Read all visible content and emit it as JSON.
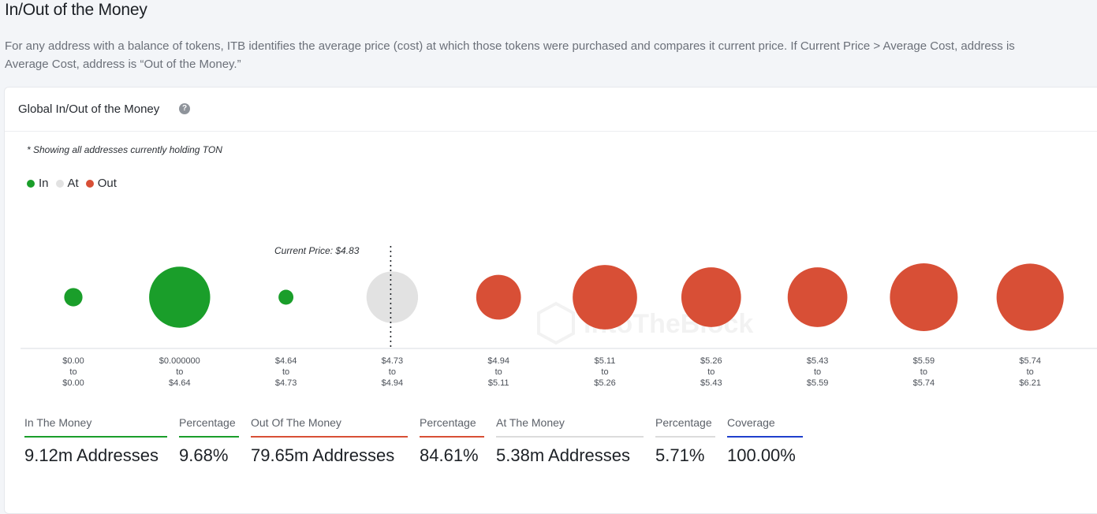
{
  "page": {
    "title": "In/Out of the Money",
    "description_line1": "For any address with a balance of tokens, ITB identifies the average price (cost) at which those tokens were purchased and compares it current price. If Current Price > Average Cost, address is",
    "description_line2": "Average Cost, address is “Out of the Money.”"
  },
  "card": {
    "title": "Global In/Out of the Money",
    "help_icon": "question-circle-icon",
    "note": "* Showing all addresses currently holding TON",
    "watermark": "IntoTheBlock"
  },
  "legend": [
    {
      "label": "In",
      "color": "#1a9e2a"
    },
    {
      "label": "At",
      "color": "#e2e2e2"
    },
    {
      "label": "Out",
      "color": "#d84f36"
    }
  ],
  "chart_data": {
    "type": "scatter",
    "current_price_label": "Current Price: $4.83",
    "current_price_bucket": 3,
    "buckets": [
      {
        "from": "$0.00",
        "to_word": "to",
        "to": "$0.00",
        "status": "In",
        "relative_size": 0.27
      },
      {
        "from": "$0.000000",
        "to_word": "to",
        "to": "$4.64",
        "status": "In",
        "relative_size": 0.9
      },
      {
        "from": "$4.64",
        "to_word": "to",
        "to": "$4.73",
        "status": "In",
        "relative_size": 0.22
      },
      {
        "from": "$4.73",
        "to_word": "to",
        "to": "$4.94",
        "status": "At",
        "relative_size": 0.76
      },
      {
        "from": "$4.94",
        "to_word": "to",
        "to": "$5.11",
        "status": "Out",
        "relative_size": 0.66
      },
      {
        "from": "$5.11",
        "to_word": "to",
        "to": "$5.26",
        "status": "Out",
        "relative_size": 0.95
      },
      {
        "from": "$5.26",
        "to_word": "to",
        "to": "$5.43",
        "status": "Out",
        "relative_size": 0.88
      },
      {
        "from": "$5.43",
        "to_word": "to",
        "to": "$5.59",
        "status": "Out",
        "relative_size": 0.88
      },
      {
        "from": "$5.59",
        "to_word": "to",
        "to": "$5.74",
        "status": "Out",
        "relative_size": 1.0
      },
      {
        "from": "$5.74",
        "to_word": "to",
        "to": "$6.21",
        "status": "Out",
        "relative_size": 0.99
      }
    ]
  },
  "stats": [
    {
      "label": "In The Money",
      "value": "9.12m Addresses",
      "color": "#1a9e2a"
    },
    {
      "label": "Percentage",
      "value": "9.68%",
      "color": "#1a9e2a"
    },
    {
      "label": "Out Of The Money",
      "value": "79.65m Addresses",
      "color": "#d84f36"
    },
    {
      "label": "Percentage",
      "value": "84.61%",
      "color": "#d84f36"
    },
    {
      "label": "At The Money",
      "value": "5.38m Addresses",
      "color": "#dcdcdc"
    },
    {
      "label": "Percentage",
      "value": "5.71%",
      "color": "#dcdcdc"
    },
    {
      "label": "Coverage",
      "value": "100.00%",
      "color": "#1f3fcc"
    }
  ]
}
